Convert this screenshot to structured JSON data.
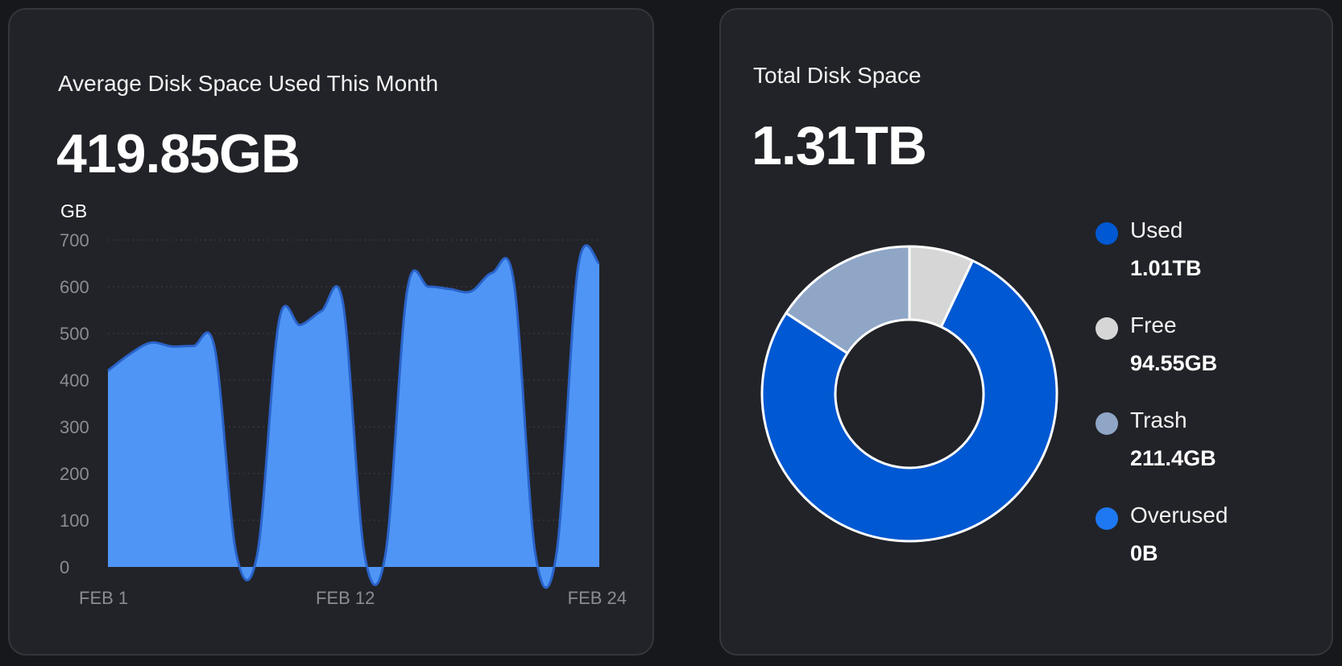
{
  "left_card": {
    "title": "Average Disk Space Used This Month",
    "value": "419.85GB"
  },
  "right_card": {
    "title": "Total Disk Space",
    "value": "1.31TB"
  },
  "chart_data": [
    {
      "type": "area",
      "ylabel": "GB",
      "ylim": [
        0,
        700
      ],
      "yticks": [
        0,
        100,
        200,
        300,
        400,
        500,
        600,
        700
      ],
      "xtick_labels": [
        "FEB 1",
        "FEB 12",
        "FEB 24"
      ],
      "grid": true,
      "fill_color": "#4f95f5",
      "line_color": "#2a63c9",
      "x": [
        "FEB 1",
        "FEB 2",
        "FEB 3",
        "FEB 4",
        "FEB 5",
        "FEB 6",
        "FEB 7",
        "FEB 8",
        "FEB 9",
        "FEB 10",
        "FEB 11",
        "FEB 12",
        "FEB 13",
        "FEB 14",
        "FEB 15",
        "FEB 16",
        "FEB 17",
        "FEB 18",
        "FEB 19",
        "FEB 20",
        "FEB 21",
        "FEB 22",
        "FEB 23",
        "FEB 24"
      ],
      "values": [
        420,
        455,
        480,
        472,
        473,
        468,
        30,
        30,
        525,
        518,
        548,
        565,
        30,
        30,
        590,
        600,
        595,
        590,
        630,
        610,
        30,
        30,
        640,
        650
      ]
    },
    {
      "type": "pie",
      "donut": true,
      "slices": [
        {
          "label": "Used",
          "display": "1.01TB",
          "value": 1034.24,
          "color": "#0058d2"
        },
        {
          "label": "Free",
          "display": "94.55GB",
          "value": 94.55,
          "color": "#d6d6d6"
        },
        {
          "label": "Trash",
          "display": "211.4GB",
          "value": 211.4,
          "color": "#8fa6c7"
        },
        {
          "label": "Overused",
          "display": "0B",
          "value": 0,
          "color": "#1d78f2"
        }
      ]
    }
  ]
}
